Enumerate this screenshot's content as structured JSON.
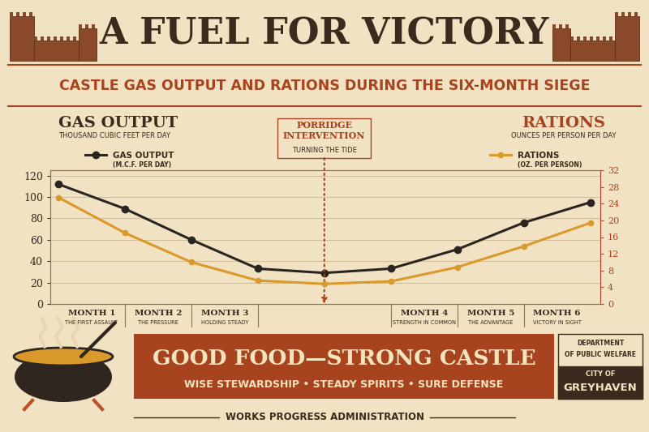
{
  "chart_data": {
    "type": "line",
    "title": "A FUEL FOR VICTORY",
    "subtitle": "CASTLE GAS OUTPUT AND RATIONS DURING THE SIX-MONTH SIEGE",
    "categories": [
      null,
      null,
      null,
      null,
      null,
      null,
      null,
      null,
      null
    ],
    "series": [
      {
        "name": "GAS OUTPUT",
        "note": "(M.C.F. PER DAY)",
        "color": "#2b2521",
        "marker": "o",
        "values": [
          112,
          89,
          60,
          33,
          29,
          33,
          51,
          76,
          95
        ]
      },
      {
        "name": "RATIONS",
        "note": "(OZ. PER PERSON)",
        "color": "#d99a2b",
        "marker": "o",
        "axis": "y2",
        "values": [
          25.5,
          17,
          10,
          5.6,
          4.8,
          5.4,
          8.8,
          13.8,
          19.4
        ]
      }
    ],
    "ylabel": "GAS OUTPUT",
    "ylabel_note": "THOUSAND CUBIC FEET PER DAY",
    "y2label": "RATIONS",
    "y2label_note": "OUNCES PER PERSON PER DAY",
    "ylim": [
      0,
      125
    ],
    "yticks": [
      0,
      20,
      40,
      60,
      80,
      100,
      120
    ],
    "y2lim": [
      0,
      32
    ],
    "y2ticks": [
      0,
      4,
      8,
      12,
      16,
      20,
      24,
      28,
      32
    ],
    "grid": true,
    "periods": [
      {
        "label": "MONTH 1",
        "subtitle": "THE FIRST ASSAULT"
      },
      {
        "label": "MONTH 2",
        "subtitle": "THE PRESSURE"
      },
      {
        "label": "MONTH 3",
        "subtitle": "HOLDING STEADY"
      },
      {
        "label": "MONTH 4",
        "subtitle": "STRENGTH IN COMMON"
      },
      {
        "label": "MONTH 5",
        "subtitle": "THE ADVANTAGE"
      },
      {
        "label": "MONTH 6",
        "subtitle": "VICTORY IN SIGHT"
      }
    ],
    "annotation": {
      "text": "PORRIDGE INTERVENTION",
      "subtext": "TURNING THE TIDE"
    }
  },
  "footer": {
    "slogan": "GOOD FOOD—STRONG CASTLE",
    "motto": "WISE STEWARDSHIP • STEADY SPIRITS • SURE DEFENSE",
    "department": "DEPARTMENT OF PUBLIC WELFARE",
    "city": "CITY OF GREYHAVEN",
    "agency": "WORKS PROGRESS ADMINISTRATION"
  }
}
